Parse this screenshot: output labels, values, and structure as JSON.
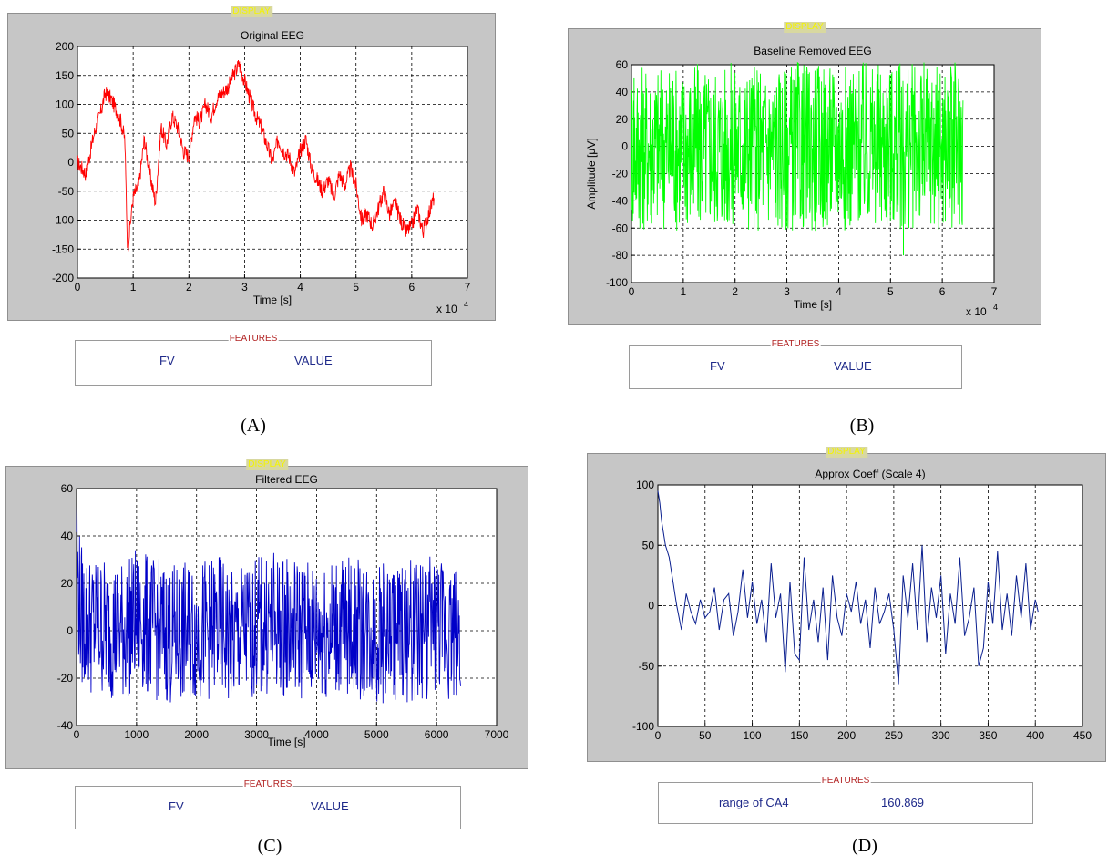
{
  "panels": [
    {
      "id": "A",
      "caption": "(A)",
      "display_label": "DISPLAY",
      "features": {
        "label": "FEATURES",
        "fv": "FV",
        "value": "VALUE"
      },
      "chart_data": {
        "type": "line",
        "title": "Original EEG",
        "xlabel": "Time [s]",
        "ylabel": "",
        "x_multiplier": "x 10",
        "x_exponent": "4",
        "xlim": [
          0,
          7
        ],
        "ylim": [
          -200,
          200
        ],
        "xticks": [
          "0",
          "1",
          "2",
          "3",
          "4",
          "5",
          "6",
          "7"
        ],
        "yticks": [
          "-200",
          "-150",
          "-100",
          "-50",
          "0",
          "50",
          "100",
          "150",
          "200"
        ],
        "grid": true,
        "color": "#ff0000",
        "band": 14,
        "x": [
          0,
          0.15,
          0.3,
          0.4,
          0.5,
          0.6,
          0.7,
          0.78,
          0.85,
          0.9,
          1.0,
          1.1,
          1.2,
          1.3,
          1.4,
          1.5,
          1.6,
          1.7,
          1.8,
          1.9,
          2.0,
          2.1,
          2.2,
          2.3,
          2.4,
          2.5,
          2.6,
          2.7,
          2.8,
          2.9,
          3.0,
          3.1,
          3.2,
          3.3,
          3.4,
          3.5,
          3.6,
          3.7,
          3.8,
          3.9,
          4.0,
          4.1,
          4.2,
          4.3,
          4.4,
          4.5,
          4.6,
          4.7,
          4.8,
          4.9,
          5.0,
          5.1,
          5.2,
          5.3,
          5.4,
          5.5,
          5.6,
          5.7,
          5.8,
          5.9,
          6.0,
          6.1,
          6.2,
          6.3,
          6.4
        ],
        "y": [
          0,
          -20,
          50,
          80,
          120,
          110,
          90,
          70,
          40,
          -150,
          -60,
          -40,
          40,
          -20,
          -70,
          60,
          30,
          80,
          60,
          20,
          10,
          80,
          70,
          100,
          80,
          110,
          120,
          130,
          150,
          170,
          140,
          110,
          80,
          60,
          30,
          0,
          40,
          20,
          10,
          -20,
          20,
          40,
          -10,
          -30,
          -50,
          -30,
          -60,
          -20,
          -40,
          -10,
          -40,
          -100,
          -90,
          -110,
          -80,
          -50,
          -90,
          -70,
          -100,
          -120,
          -110,
          -80,
          -120,
          -90,
          -60
        ]
      }
    },
    {
      "id": "B",
      "caption": "(B)",
      "display_label": "DISPLAY",
      "features": {
        "label": "FEATURES",
        "fv": "FV",
        "value": "VALUE"
      },
      "chart_data": {
        "type": "line",
        "title": "Baseline Removed EEG",
        "xlabel": "Time [s]",
        "ylabel": "Amplitude [μV]",
        "x_multiplier": "x 10",
        "x_exponent": "4",
        "xlim": [
          0,
          7
        ],
        "ylim": [
          -100,
          60
        ],
        "xticks": [
          "0",
          "1",
          "2",
          "3",
          "4",
          "5",
          "6",
          "7"
        ],
        "yticks": [
          "-100",
          "-80",
          "-60",
          "-40",
          "-20",
          "0",
          "20",
          "40",
          "60"
        ],
        "grid": true,
        "color": "#00ff00",
        "band": 62,
        "x": [
          0,
          0.05,
          0.5,
          0.8,
          1.5,
          2.3,
          3.0,
          3.5,
          4.0,
          4.9,
          5.2,
          5.5,
          6.0,
          6.4
        ],
        "y": [
          0,
          0,
          0,
          0,
          0,
          0,
          0,
          0,
          0,
          0,
          0,
          0,
          0,
          0
        ],
        "spikes": [
          [
            0.05,
            50
          ],
          [
            0.8,
            48
          ],
          [
            2.4,
            -47
          ],
          [
            3.3,
            -50
          ],
          [
            4.9,
            -46
          ],
          [
            5.25,
            -80
          ],
          [
            1.2,
            -42
          ],
          [
            3.9,
            40
          ]
        ]
      }
    },
    {
      "id": "C",
      "caption": "(C)",
      "display_label": "DISPLAY",
      "features": {
        "label": "FEATURES",
        "fv": "FV",
        "value": "VALUE"
      },
      "chart_data": {
        "type": "line",
        "title": "Filtered EEG",
        "xlabel": "Time [s]",
        "ylabel": "",
        "xlim": [
          0,
          7000
        ],
        "ylim": [
          -40,
          60
        ],
        "xticks": [
          "0",
          "1000",
          "2000",
          "3000",
          "4000",
          "5000",
          "6000",
          "7000"
        ],
        "yticks": [
          "-40",
          "-20",
          "0",
          "20",
          "40",
          "60"
        ],
        "grid": true,
        "color": "#0000c8",
        "band": 30,
        "x": [
          0,
          20,
          60,
          100,
          200,
          400,
          800,
          1000,
          1200,
          1600,
          2000,
          2400,
          2600,
          2800,
          3200,
          3600,
          4000,
          4400,
          4800,
          5200,
          5600,
          6000,
          6400
        ],
        "y": [
          50,
          20,
          10,
          5,
          3,
          2,
          0,
          5,
          2,
          -2,
          0,
          2,
          -5,
          0,
          3,
          2,
          0,
          2,
          0,
          -1,
          0,
          2,
          0
        ]
      }
    },
    {
      "id": "D",
      "caption": "(D)",
      "display_label": "DISPLAY",
      "features": {
        "label": "FEATURES",
        "fv": "range of CA4",
        "value": "160.869"
      },
      "chart_data": {
        "type": "line",
        "title": "Approx Coeff (Scale 4)",
        "xlabel": "",
        "ylabel": "",
        "xlim": [
          0,
          450
        ],
        "ylim": [
          -100,
          100
        ],
        "xticks": [
          "0",
          "50",
          "100",
          "150",
          "200",
          "250",
          "300",
          "350",
          "400",
          "450"
        ],
        "yticks": [
          "-100",
          "-50",
          "0",
          "50",
          "100"
        ],
        "grid": true,
        "color": "#0a1f8f",
        "band": 0,
        "x": [
          0,
          2,
          4,
          6,
          8,
          10,
          12,
          14,
          16,
          18,
          20,
          25,
          30,
          35,
          40,
          45,
          50,
          55,
          60,
          65,
          70,
          75,
          80,
          85,
          90,
          95,
          100,
          105,
          110,
          115,
          120,
          125,
          130,
          135,
          140,
          145,
          150,
          155,
          160,
          165,
          170,
          175,
          180,
          185,
          190,
          195,
          200,
          205,
          210,
          215,
          220,
          225,
          230,
          235,
          240,
          245,
          250,
          255,
          260,
          265,
          270,
          275,
          280,
          285,
          290,
          295,
          300,
          305,
          310,
          315,
          320,
          325,
          330,
          335,
          340,
          345,
          350,
          355,
          360,
          365,
          370,
          375,
          380,
          385,
          390,
          395,
          400,
          403
        ],
        "y": [
          95,
          85,
          70,
          60,
          50,
          45,
          40,
          30,
          20,
          10,
          0,
          -20,
          10,
          -5,
          -15,
          5,
          -10,
          -5,
          15,
          -20,
          5,
          10,
          -25,
          -5,
          30,
          -10,
          20,
          -15,
          5,
          -30,
          35,
          -10,
          10,
          -55,
          20,
          -40,
          -45,
          40,
          -20,
          5,
          -30,
          15,
          -45,
          25,
          -10,
          -25,
          10,
          -5,
          20,
          -15,
          5,
          -35,
          15,
          -15,
          -5,
          10,
          -20,
          -65,
          25,
          -10,
          35,
          -20,
          50,
          -30,
          15,
          -10,
          25,
          -40,
          10,
          -15,
          40,
          -25,
          -10,
          15,
          -50,
          -35,
          20,
          -15,
          45,
          -20,
          10,
          -25,
          25,
          -10,
          35,
          -20,
          5,
          -5
        ]
      }
    }
  ]
}
